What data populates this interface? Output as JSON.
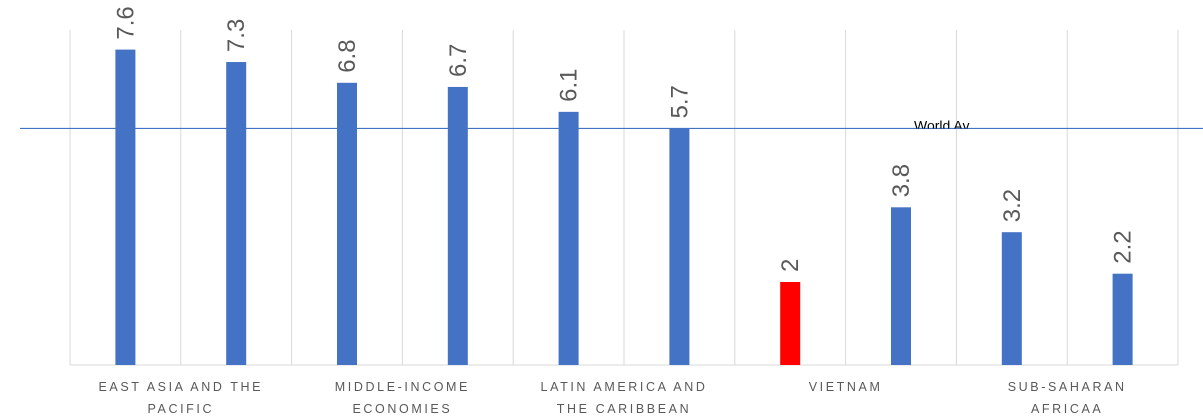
{
  "chart_data": {
    "type": "bar",
    "categories": [
      "EAST ASIA AND THE PACIFIC",
      "",
      "MIDDLE-INCOME ECONOMIES",
      "",
      "LATIN AMERICA AND THE CARIBBEAN",
      "",
      "VIETNAM",
      "",
      "SUB-SAHARAN AFRICAA",
      ""
    ],
    "category_lines": [
      [
        "EAST ASIA AND THE",
        "PACIFIC"
      ],
      [],
      [
        "MIDDLE-INCOME",
        "ECONOMIES"
      ],
      [],
      [
        "LATIN AMERICA AND",
        "THE CARIBBEAN"
      ],
      [],
      [
        "VIETNAM"
      ],
      [],
      [
        "SUB-SAHARAN",
        "AFRICAA"
      ],
      []
    ],
    "values": [
      7.6,
      7.3,
      6.8,
      6.7,
      6.1,
      5.7,
      2,
      3.8,
      3.2,
      2.2
    ],
    "data_labels": [
      "7.6",
      "7.3",
      "6.8",
      "6.7",
      "6.1",
      "5.7",
      "2",
      "3.8",
      "3.2",
      "2.2"
    ],
    "ylim": [
      0,
      8.3
    ],
    "reference_line": {
      "value": 5.7,
      "label": "World Av..."
    },
    "colors": {
      "bar": "#4472C4",
      "highlight": "#FF0000",
      "reference": "#4472C4",
      "grid": "#D9D9D9"
    },
    "highlight_category": "VIETNAM",
    "grid": true,
    "title": "",
    "xlabel": "",
    "ylabel": ""
  }
}
